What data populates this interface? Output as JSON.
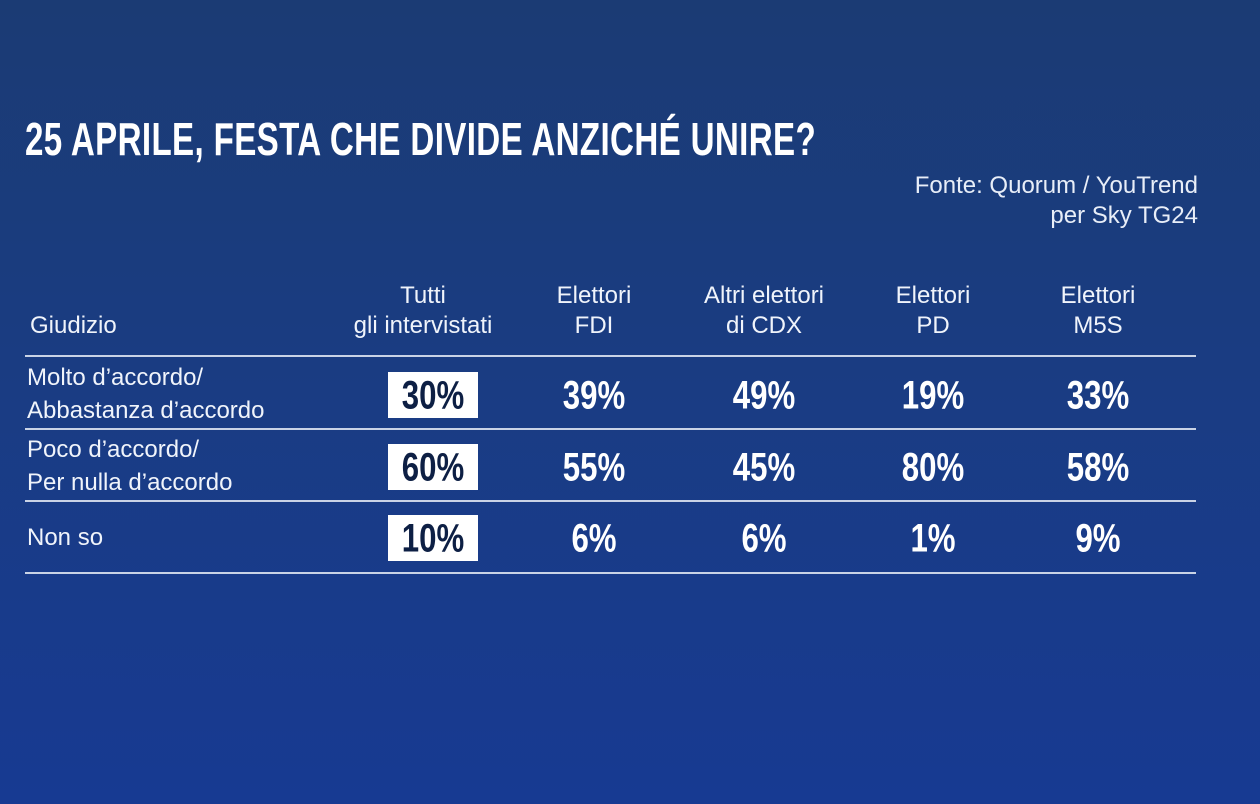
{
  "title": "25 APRILE, FESTA CHE DIVIDE ANZICHÉ UNIRE?",
  "source": [
    "Fonte: Quorum / YouTrend",
    "per Sky TG24"
  ],
  "table": {
    "columns": [
      [
        "Giudizio"
      ],
      [
        "Tutti",
        "gli intervistati"
      ],
      [
        "Elettori",
        "FDI"
      ],
      [
        "Altri elettori",
        "di CDX"
      ],
      [
        "Elettori",
        "PD"
      ],
      [
        "Elettori",
        "M5S"
      ]
    ],
    "rows": [
      {
        "label": [
          "Molto d’accordo/",
          "Abbastanza d’accordo"
        ],
        "values": [
          "30%",
          "39%",
          "49%",
          "19%",
          "33%"
        ]
      },
      {
        "label": [
          "Poco d’accordo/",
          "Per nulla d’accordo"
        ],
        "values": [
          "60%",
          "55%",
          "45%",
          "80%",
          "58%"
        ]
      },
      {
        "label": [
          "Non so"
        ],
        "values": [
          "10%",
          "6%",
          "6%",
          "1%",
          "9%"
        ]
      }
    ]
  }
}
